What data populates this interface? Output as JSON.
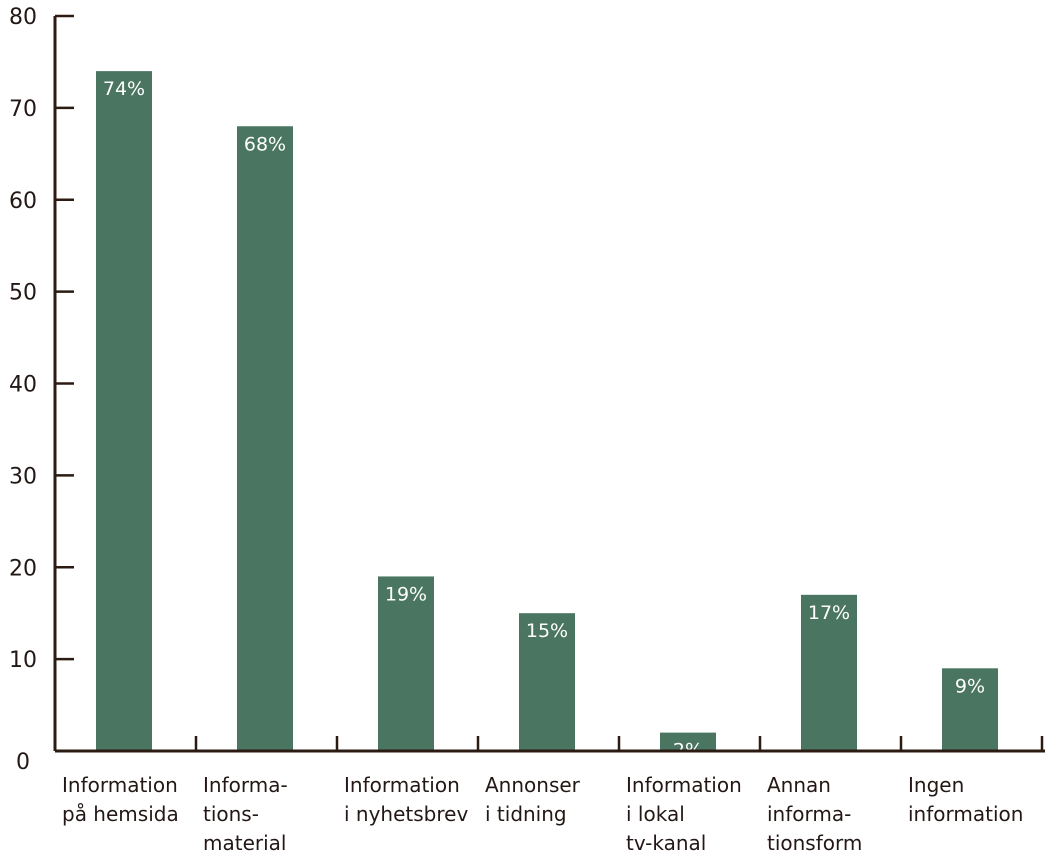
{
  "chart_data": {
    "type": "bar",
    "categories": [
      [
        "Information",
        "på hemsida"
      ],
      [
        "Informa-",
        "tions-",
        "material"
      ],
      [
        "Information",
        "i nyhetsbrev"
      ],
      [
        "Annonser",
        "i tidning"
      ],
      [
        "Information",
        "i lokal",
        "tv-kanal"
      ],
      [
        "Annan",
        "informa-",
        "tionsform"
      ],
      [
        "Ingen",
        "information"
      ]
    ],
    "values": [
      74,
      68,
      19,
      15,
      2,
      17,
      9
    ],
    "data_labels": [
      "74%",
      "68%",
      "19%",
      "15%",
      "2%",
      "17%",
      "9%"
    ],
    "y_ticks": [
      0,
      10,
      20,
      30,
      40,
      50,
      60,
      70,
      80
    ],
    "ylim": [
      0,
      80
    ],
    "title": "",
    "xlabel": "",
    "ylabel": "",
    "grid": false,
    "bar_color": "#4a7560",
    "axis_color": "#2c1b12"
  }
}
